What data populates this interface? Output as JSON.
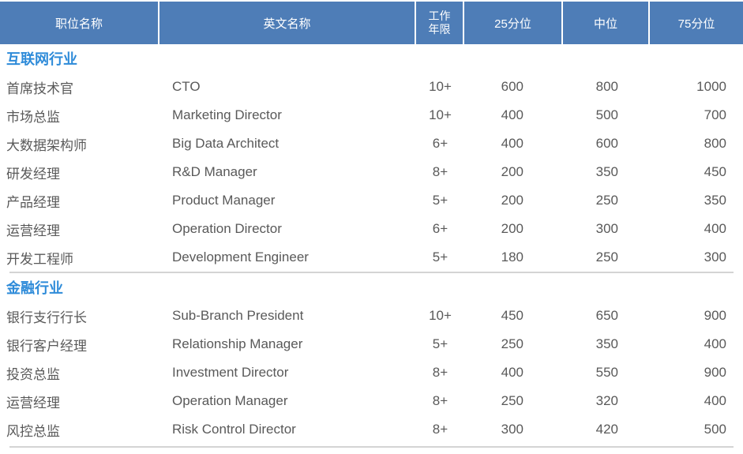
{
  "table": {
    "columns": [
      "职位名称",
      "英文名称",
      "工作年限",
      "25分位",
      "中位",
      "75分位"
    ],
    "sections": [
      {
        "title": "互联网行业",
        "rows": [
          [
            "首席技术官",
            "CTO",
            "10+",
            "600",
            "800",
            "1000"
          ],
          [
            "市场总监",
            "Marketing Director",
            "10+",
            "400",
            "500",
            "700"
          ],
          [
            "大数据架构师",
            "Big Data Architect",
            "6+",
            "400",
            "600",
            "800"
          ],
          [
            "研发经理",
            "R&D Manager",
            "8+",
            "200",
            "350",
            "450"
          ],
          [
            "产品经理",
            "Product Manager",
            "5+",
            "200",
            "250",
            "350"
          ],
          [
            "运营经理",
            "Operation Director",
            "6+",
            "200",
            "300",
            "400"
          ],
          [
            "开发工程师",
            "Development Engineer",
            "5+",
            "180",
            "250",
            "300"
          ]
        ]
      },
      {
        "title": "金融行业",
        "rows": [
          [
            "银行支行行长",
            "Sub-Branch President",
            "10+",
            "450",
            "650",
            "900"
          ],
          [
            "银行客户经理",
            "Relationship Manager",
            "5+",
            "250",
            "350",
            "400"
          ],
          [
            "投资总监",
            "Investment Director",
            "8+",
            "400",
            "550",
            "900"
          ],
          [
            "运营经理",
            "Operation Manager",
            "8+",
            "250",
            "320",
            "400"
          ],
          [
            "风控总监",
            "Risk Control Director",
            "8+",
            "300",
            "420",
            "500"
          ]
        ]
      }
    ],
    "colors": {
      "header_bg": "#4E7DB7",
      "header_text": "#FFFFFF",
      "section_title": "#2E8BD9",
      "body_text": "#595959",
      "separator": "#D4D4D4"
    }
  }
}
